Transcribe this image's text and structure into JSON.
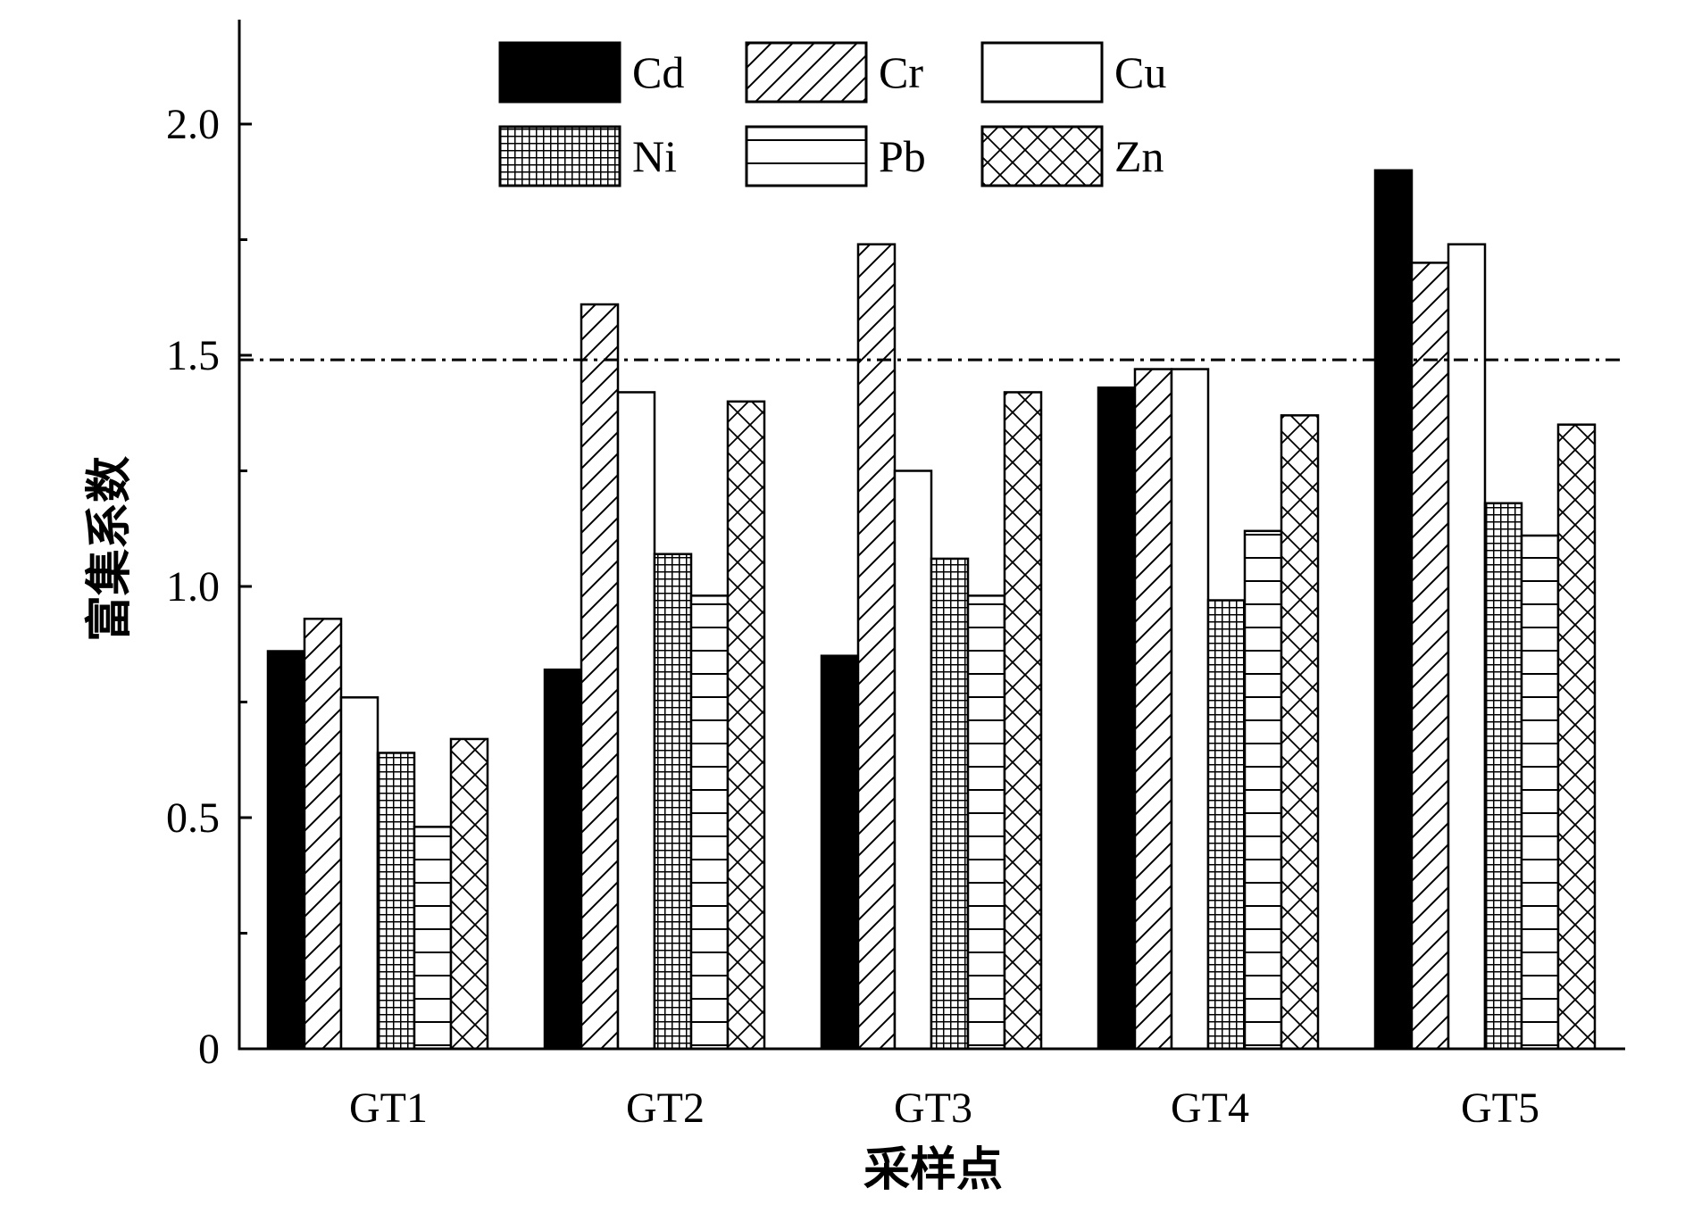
{
  "chart_data": {
    "type": "bar",
    "title": "",
    "xlabel": "采样点",
    "ylabel": "富集系数",
    "categories": [
      "GT1",
      "GT2",
      "GT3",
      "GT4",
      "GT5"
    ],
    "series": [
      {
        "name": "Cd",
        "pattern": "solid",
        "values": [
          0.86,
          0.82,
          0.85,
          1.43,
          1.9
        ]
      },
      {
        "name": "Cr",
        "pattern": "diagonal",
        "values": [
          0.93,
          1.61,
          1.74,
          1.47,
          1.7
        ]
      },
      {
        "name": "Cu",
        "pattern": "empty",
        "values": [
          0.76,
          1.42,
          1.25,
          1.47,
          1.74
        ]
      },
      {
        "name": "Ni",
        "pattern": "grid",
        "values": [
          0.64,
          1.07,
          1.06,
          0.97,
          1.18
        ]
      },
      {
        "name": "Pb",
        "pattern": "horizontal",
        "values": [
          0.48,
          0.98,
          0.98,
          1.12,
          1.11
        ]
      },
      {
        "name": "Zn",
        "pattern": "crosshatch",
        "values": [
          0.67,
          1.4,
          1.42,
          1.37,
          1.35
        ]
      }
    ],
    "ylim": [
      0,
      2.2
    ],
    "yticks": [
      0,
      0.5,
      1.0,
      1.5,
      2.0
    ],
    "ytick_labels": [
      "0",
      "0.5",
      "1.0",
      "1.5",
      "2.0"
    ],
    "reference_line": {
      "value": 1.49,
      "style": "dash-dot"
    },
    "legend_position": "top",
    "grid": false
  }
}
